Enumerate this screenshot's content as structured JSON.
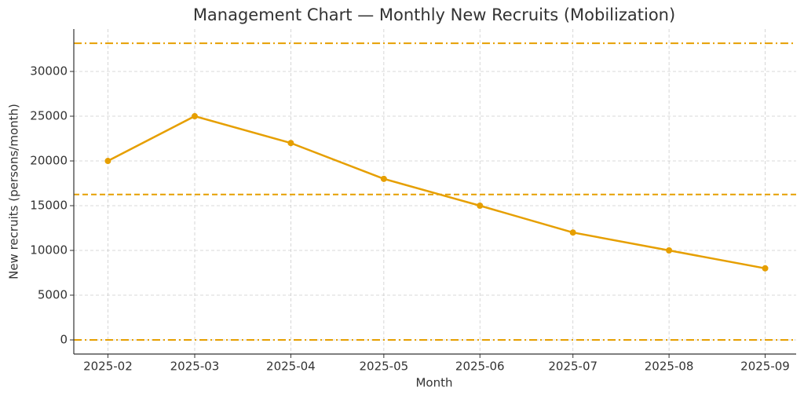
{
  "chart_data": {
    "type": "line",
    "title": "Management Chart — Monthly New Recruits (Mobilization)",
    "xlabel": "Month",
    "ylabel": "New recruits (persons/month)",
    "x": [
      "2025-02",
      "2025-03",
      "2025-04",
      "2025-05",
      "2025-06",
      "2025-07",
      "2025-08",
      "2025-09"
    ],
    "values": [
      20000,
      25000,
      22000,
      18000,
      15000,
      12000,
      10000,
      8000
    ],
    "color": "#e69f00",
    "xlim": [
      "2025-01-21",
      "2025-09-11"
    ],
    "xticks": [
      "2025-02",
      "2025-03",
      "2025-04",
      "2025-05",
      "2025-06",
      "2025-07",
      "2025-08",
      "2025-09"
    ],
    "ylim": [
      -1580,
      34740
    ],
    "yticks": [
      0,
      5000,
      10000,
      15000,
      20000,
      25000,
      30000
    ],
    "grid": true,
    "reference_lines": [
      {
        "value": 33150,
        "style": "dash-dot"
      },
      {
        "value": 16250,
        "style": "dashed"
      },
      {
        "value": 0,
        "style": "dash-dot"
      }
    ]
  }
}
